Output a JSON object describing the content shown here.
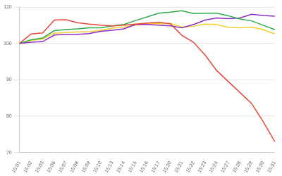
{
  "chart_data": {
    "type": "line",
    "categories": [
      "15:01",
      "15:02",
      "15:03",
      "15:06",
      "15:07",
      "15:08",
      "15:09",
      "15:10",
      "15:13",
      "15:14",
      "15:15",
      "15:16",
      "15:17",
      "15:20",
      "15:21",
      "15:22",
      "15:23",
      "15:24",
      "15:27",
      "15:28",
      "15:29",
      "15:30",
      "15:31"
    ],
    "series": [
      {
        "color": "#e8473a",
        "values": [
          100,
          102.6,
          102.9,
          106.4,
          106.5,
          105.7,
          105.3,
          105,
          104.8,
          105,
          105.3,
          105.6,
          105.8,
          105.4,
          102.2,
          100.3,
          96.8,
          92.5,
          89.5,
          86.5,
          83.5,
          78.5,
          73
        ]
      },
      {
        "color": "#2eaa4a",
        "values": [
          100,
          101,
          101.5,
          103.5,
          103.8,
          104,
          104.3,
          104.3,
          104.8,
          105.2,
          106.3,
          107.3,
          108.3,
          108.6,
          109,
          108.2,
          108.3,
          108.3,
          107.6,
          106.7,
          106.2,
          105,
          103.8
        ]
      },
      {
        "color": "#8e2cc5",
        "values": [
          100,
          100.3,
          100.5,
          102.3,
          102.5,
          102.5,
          102.7,
          103.3,
          103.6,
          104,
          105.2,
          105.2,
          105,
          104.8,
          104.3,
          105.2,
          106.4,
          107,
          106.8,
          107,
          108,
          107.7,
          107.5
        ]
      },
      {
        "color": "#f2cf30",
        "values": [
          100,
          100.8,
          101.2,
          102.8,
          103,
          103.2,
          103.2,
          103.6,
          104.2,
          104.5,
          105,
          105.5,
          105.4,
          105.5,
          104.5,
          104.7,
          105.3,
          105.2,
          104.4,
          104.3,
          104.5,
          103.8,
          102.6
        ]
      }
    ],
    "ylim": [
      70,
      110
    ],
    "yticks": [
      70,
      80,
      90,
      100,
      110
    ],
    "grid": true
  }
}
